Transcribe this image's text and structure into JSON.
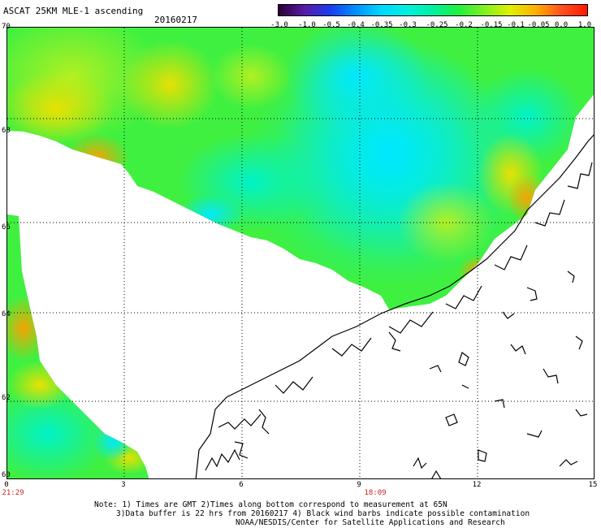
{
  "header": {
    "title": "ASCAT 25KM MLE-1 ascending",
    "date": "20160217"
  },
  "colorbar": {
    "labels": [
      "-3.0",
      "-1.0",
      "-0.5",
      "-0.4",
      "-0.35",
      "-0.3",
      "-0.25",
      "-0.2",
      "-0.15",
      "-0.1",
      "-0.05",
      "0.0",
      "1.0"
    ],
    "colors": [
      "#2a0033",
      "#5a1aa6",
      "#1a3cf0",
      "#0090ff",
      "#00d8ff",
      "#00f0e0",
      "#00f0a0",
      "#20f040",
      "#80f020",
      "#e0f000",
      "#ffb000",
      "#ff5020",
      "#ff1800"
    ]
  },
  "axes": {
    "lat_labels": [
      "70",
      "68",
      "66",
      "64",
      "62",
      "60"
    ],
    "lon_labels": [
      "0",
      "3",
      "6",
      "9",
      "12",
      "15"
    ],
    "time_labels": [
      "21:29",
      "18:09"
    ]
  },
  "notes": [
    "Note: 1) Times are GMT 2)Times along bottom correspond to measurement at 65N",
    "3)Data buffer is 22 hrs from 20160217 4) Black wind barbs indicate possible contamination",
    "NOAA/NESDIS/Center for Satellite Applications and Research"
  ],
  "colors": {
    "land_outline": "#000000",
    "no_data": "#ffffff",
    "time_text": "#cc2222"
  }
}
